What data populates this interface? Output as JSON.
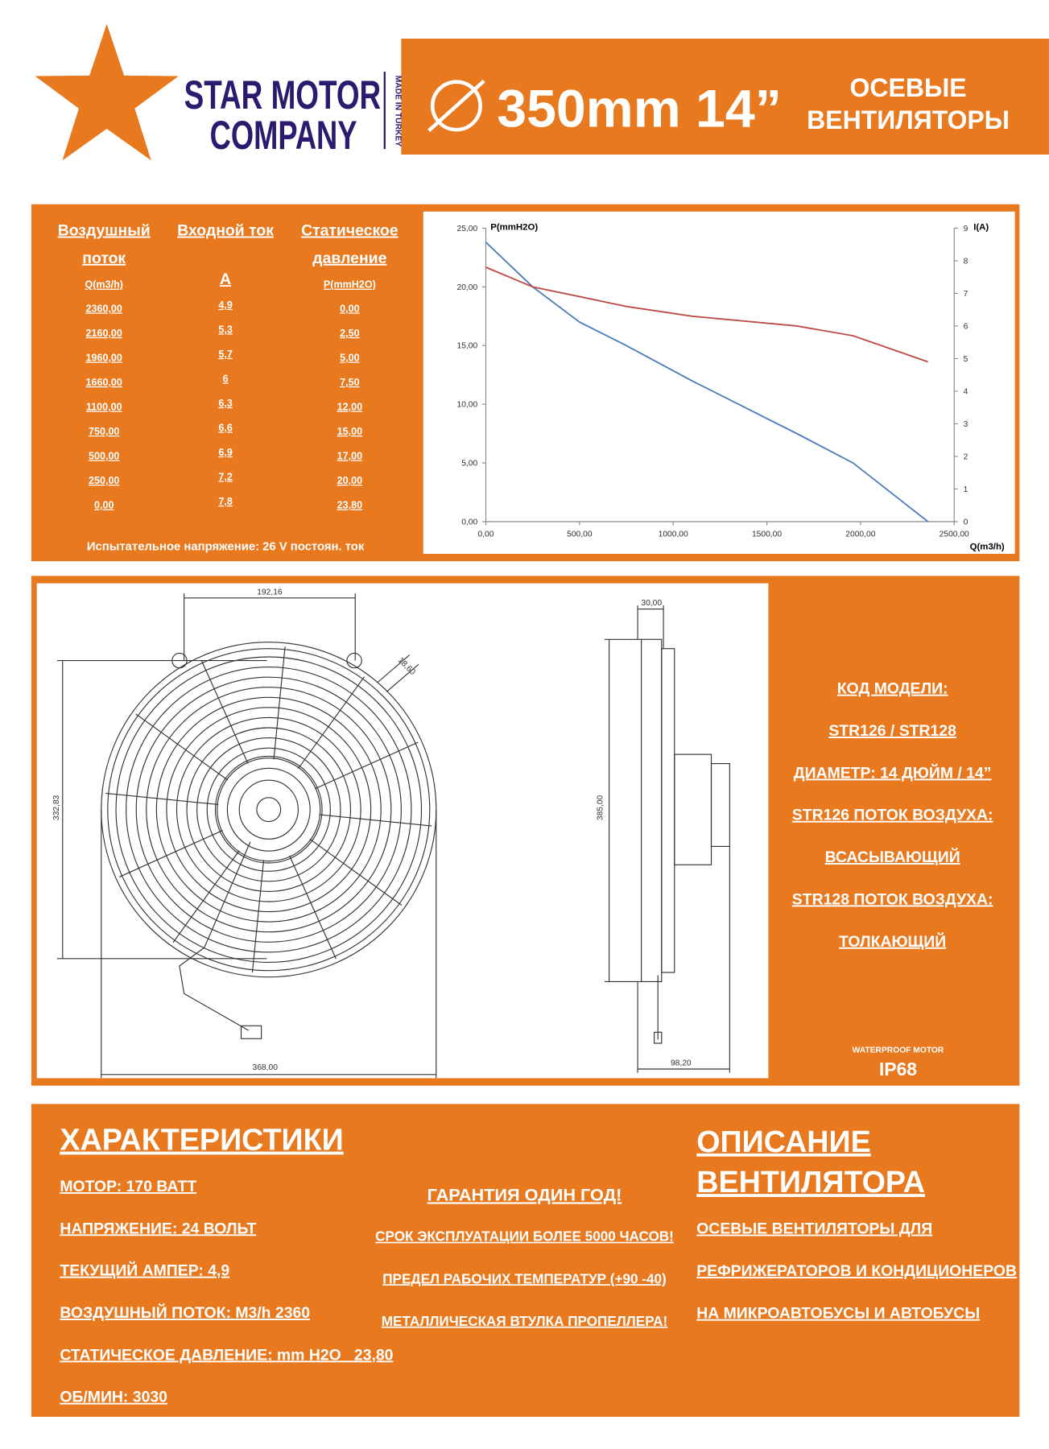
{
  "header": {
    "brand": [
      "STAR MOTOR",
      "COMPANY"
    ],
    "origin": "MADE IN TURKEY",
    "size": "350mm 14”",
    "product": [
      "ОСЕВЫЕ",
      "ВЕНТИЛЯТОРЫ"
    ]
  },
  "table": {
    "headers": [
      [
        "Воздушный",
        "поток"
      ],
      [
        "Входной ток"
      ],
      [
        "Статическое",
        "давление"
      ]
    ],
    "units": [
      "Q(m3/h)",
      "A",
      "P(mmH2O)"
    ],
    "rows": [
      [
        "2360,00",
        "4,9",
        "0,00"
      ],
      [
        "2160,00",
        "5,3",
        "2,50"
      ],
      [
        "1960,00",
        "5,7",
        "5,00"
      ],
      [
        "1660,00",
        "6",
        "7,50"
      ],
      [
        "1100,00",
        "6,3",
        "12,00"
      ],
      [
        "750,00",
        "6,6",
        "15,00"
      ],
      [
        "500,00",
        "6,9",
        "17,00"
      ],
      [
        "250,00",
        "7,2",
        "20,00"
      ],
      [
        "0,00",
        "7,8",
        "23,80"
      ]
    ],
    "note": "Испытательное напряжение: 26 V постоян. ток"
  },
  "chart_data": {
    "type": "line",
    "y_label": "P(mmH2O)",
    "y2_label": "I(A)",
    "x_label": "Q(m3/h)",
    "x": [
      0,
      250,
      500,
      750,
      1100,
      1660,
      1960,
      2160,
      2360
    ],
    "series": [
      {
        "color": "#4a7ebb",
        "values": [
          23.8,
          20,
          17,
          15,
          12,
          7.5,
          5,
          2.5,
          0
        ]
      },
      {
        "color": "#be4b48",
        "axis": "y2",
        "values": [
          7.8,
          7.2,
          6.9,
          6.6,
          6.3,
          6,
          5.7,
          5.3,
          4.9
        ]
      }
    ],
    "xlim": [
      0,
      2500
    ],
    "xticks": [
      {
        "value": 0,
        "label": "0,00"
      },
      {
        "value": 500,
        "label": "500,00"
      },
      {
        "value": 1000,
        "label": "1000,00"
      },
      {
        "value": 1500,
        "label": "1500,00"
      },
      {
        "value": 2000,
        "label": "2000,00"
      },
      {
        "value": 2500,
        "label": "2500,00"
      }
    ],
    "ylim": [
      0,
      25
    ],
    "yticks": [
      {
        "value": 0,
        "label": "0,00"
      },
      {
        "value": 5,
        "label": "5,00"
      },
      {
        "value": 10,
        "label": "10,00"
      },
      {
        "value": 15,
        "label": "15,00"
      },
      {
        "value": 20,
        "label": "20,00"
      },
      {
        "value": 25,
        "label": "25,00"
      }
    ],
    "y2lim": [
      0,
      9
    ],
    "y2ticks": [
      0,
      1,
      2,
      3,
      4,
      5,
      6,
      7,
      8,
      9
    ],
    "grid": false
  },
  "drawing": {
    "dimensions": [
      "192,16",
      "18,60",
      "332,83",
      "368,00",
      "30,00",
      "385,00",
      "98,20"
    ]
  },
  "model": {
    "lines": [
      "КОД МОДЕЛИ:",
      "STR126 / STR128",
      "ДИАМЕТР: 14 ДЮЙМ / 14”",
      "STR126 ПОТОК ВОЗДУХА:",
      "ВСАСЫВАЮЩИЙ",
      "STR128 ПОТОК ВОЗДУХА:",
      "ТОЛКАЮЩИЙ"
    ],
    "protection_caption": "WATERPROOF MOTOR",
    "protection": "IP68"
  },
  "specs": {
    "title": "ХАРАКТЕРИСТИКИ",
    "items": [
      "МОТОР: 170 ВАТТ",
      "НАПРЯЖЕНИЕ: 24 ВОЛЬТ",
      "ТЕКУЩИЙ АМПЕР: 4,9",
      "ВОЗДУШНЫЙ ПОТОК: M3/h 2360",
      "СТАТИЧЕСКОЕ ДАВЛЕНИЕ: mm H2O   23,80",
      "ОБ/МИН: 3030"
    ]
  },
  "warranty": {
    "items": [
      "ГАРАНТИЯ ОДИН ГОД!",
      "СРОК ЭКСПЛУАТАЦИИ БОЛЕЕ 5000 ЧАСОВ!",
      "ПРЕДЕЛ РАБОЧИХ ТЕМПЕРАТУР (+90 -40)",
      "МЕТАЛЛИЧЕСКАЯ ВТУЛКА ПРОПЕЛЛЕРА!"
    ]
  },
  "description": {
    "title": [
      "ОПИСАНИЕ",
      "ВЕНТИЛЯТОРА"
    ],
    "lines": [
      "ОСЕВЫЕ ВЕНТИЛЯТОРЫ ДЛЯ",
      "РЕФРИЖЕРАТОРОВ И КОНДИЦИОНЕРОВ",
      "НА МИКРОАВТОБУСЫ И АВТОБУСЫ"
    ]
  }
}
